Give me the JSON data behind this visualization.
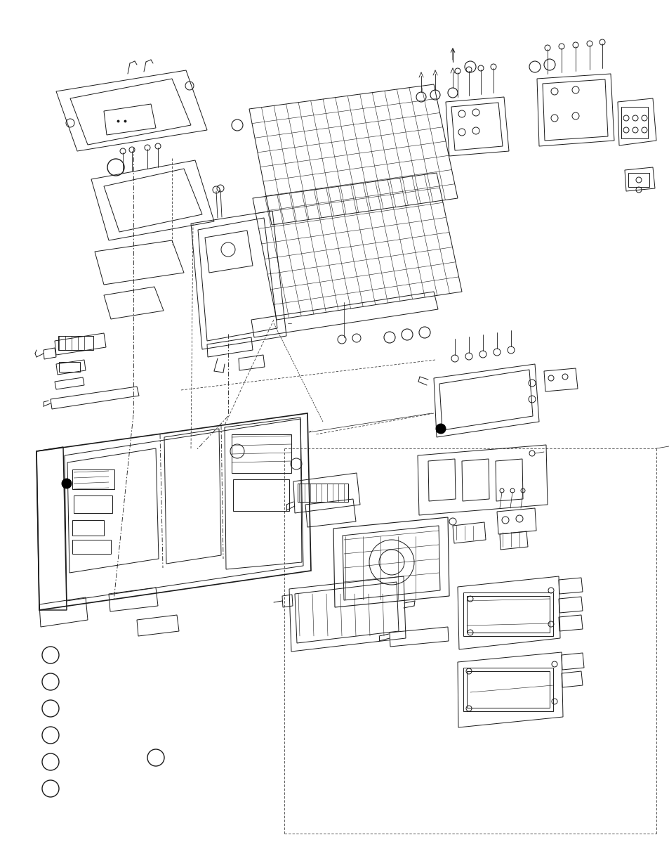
{
  "bg_color": "#ffffff",
  "line_color": "#1a1a1a",
  "fig_width": 9.54,
  "fig_height": 12.35,
  "dpi": 100
}
